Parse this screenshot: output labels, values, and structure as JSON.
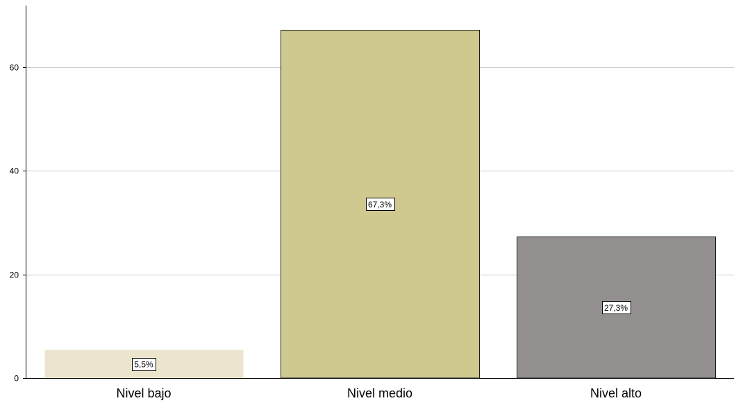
{
  "chart_data": {
    "type": "bar",
    "categories": [
      "Nivel bajo",
      "Nivel medio",
      "Nivel alto"
    ],
    "values": [
      5.5,
      67.3,
      27.3
    ],
    "data_labels": [
      "5,5%",
      "67,3%",
      "27,3%"
    ],
    "bar_colors": [
      "#ede4cd",
      "#cfc88f",
      "#948f8f"
    ],
    "y_ticks": [
      0,
      20,
      40,
      60
    ],
    "y_tick_labels": [
      "0",
      "20",
      "40",
      "60"
    ],
    "ylim": [
      0,
      73
    ],
    "grid": "horizontal",
    "title": "",
    "xlabel": "",
    "ylabel": ""
  }
}
